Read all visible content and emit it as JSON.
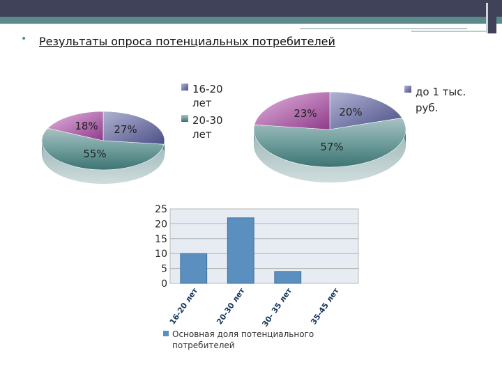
{
  "slide": {
    "bullet": "•",
    "title": "Результаты опроса потенциальных потребителей"
  },
  "colors": {
    "header_dark": "#3f4258",
    "header_teal": "#5a8a8c",
    "pie_teal": "#4e8c8a",
    "pie_blue": "#5b5f94",
    "pie_purple": "#93428f",
    "bar_blue": "#5a8fbf",
    "plot_bg": "#e6ecf1"
  },
  "chart_data": [
    {
      "type": "pie",
      "title": "",
      "slices": [
        {
          "label": "27%",
          "value": 27,
          "legend": "16-20 лет",
          "color": "#5b5f94"
        },
        {
          "label": "55%",
          "value": 55,
          "legend": "20-30 лет",
          "color": "#4e8c8a"
        },
        {
          "label": "18%",
          "value": 18,
          "legend": "",
          "color": "#93428f"
        }
      ],
      "legend": [
        "16-20 лет",
        "20-30 лет"
      ],
      "legend_placement": "right"
    },
    {
      "type": "pie",
      "title": "",
      "slices": [
        {
          "label": "20%",
          "value": 20,
          "legend": "до 1 тыс. руб.",
          "color": "#5b5f94"
        },
        {
          "label": "57%",
          "value": 57,
          "legend": "",
          "color": "#4e8c8a"
        },
        {
          "label": "23%",
          "value": 23,
          "legend": "",
          "color": "#93428f"
        }
      ],
      "legend": [
        "до 1 тыс. руб."
      ],
      "legend_placement": "right"
    },
    {
      "type": "bar",
      "title": "",
      "categories": [
        "16-20 лет",
        "20-30 лет",
        "30- 35 лет",
        "35-45 лет"
      ],
      "series": [
        {
          "name": "Основная доля потенциального потребителей",
          "values": [
            10,
            22,
            4,
            0
          ]
        }
      ],
      "yticks": [
        "0",
        "5",
        "10",
        "15",
        "20",
        "25"
      ],
      "ylim": [
        0,
        25
      ],
      "grid": true,
      "legend_placement": "bottom"
    }
  ]
}
